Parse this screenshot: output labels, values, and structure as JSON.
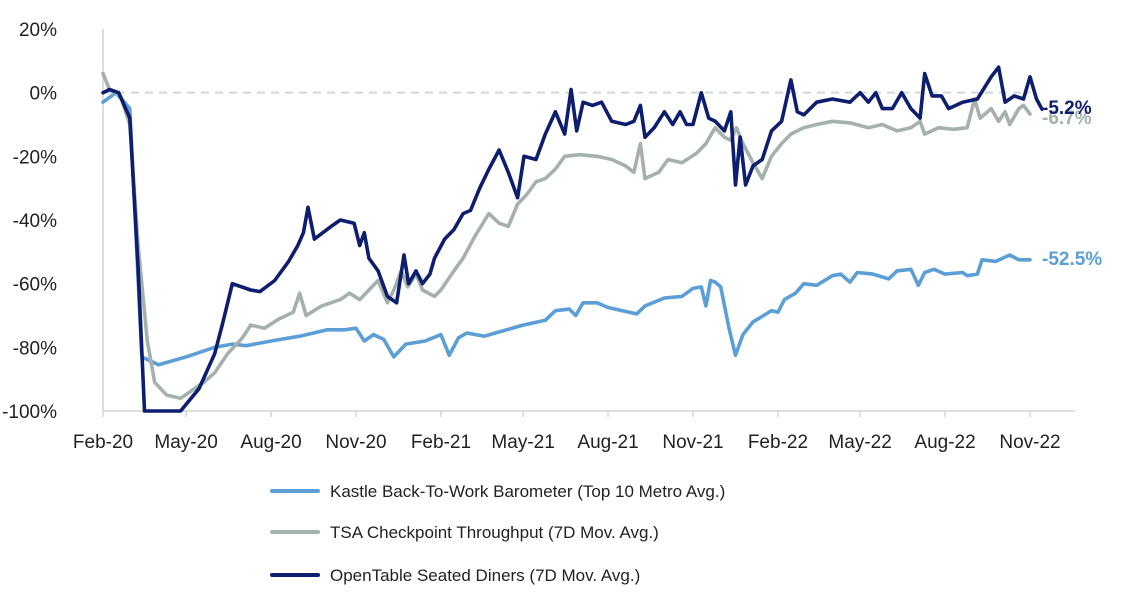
{
  "chart_data": {
    "type": "line",
    "title": "",
    "xlabel": "",
    "ylabel": "",
    "ylim": [
      -100,
      20
    ],
    "y_ticks": [
      20,
      0,
      -20,
      -40,
      -60,
      -80,
      -100
    ],
    "y_tick_labels": [
      "20%",
      "0%",
      "-20%",
      "-40%",
      "-60%",
      "-80%",
      "-100%"
    ],
    "x_range": [
      "2020-02-01",
      "2022-11-01"
    ],
    "x_ticks": [
      "2020-02-01",
      "2020-05-01",
      "2020-08-01",
      "2020-11-01",
      "2021-02-01",
      "2021-05-01",
      "2021-08-01",
      "2021-11-01",
      "2022-02-01",
      "2022-05-01",
      "2022-08-01",
      "2022-11-01"
    ],
    "x_tick_labels": [
      "Feb-20",
      "May-20",
      "Aug-20",
      "Nov-20",
      "Feb-21",
      "May-21",
      "Aug-21",
      "Nov-21",
      "Feb-22",
      "May-22",
      "Aug-22",
      "Nov-22"
    ],
    "zero_reference_line": true,
    "grid": false,
    "legend_position": "bottom",
    "series": [
      {
        "name": "Kastle Back-To-Work Barometer (Top 10 Metro Avg.)",
        "color": "#5b9fd6",
        "end_label": "-52.5%",
        "points": [
          [
            "2020-02-01",
            -3
          ],
          [
            "2020-02-15",
            0
          ],
          [
            "2020-03-01",
            -5
          ],
          [
            "2020-03-07",
            -40
          ],
          [
            "2020-03-14",
            -83
          ],
          [
            "2020-04-01",
            -85.5
          ],
          [
            "2020-05-01",
            -83
          ],
          [
            "2020-06-01",
            -80
          ],
          [
            "2020-06-20",
            -79
          ],
          [
            "2020-07-05",
            -79.5
          ],
          [
            "2020-08-01",
            -78
          ],
          [
            "2020-09-01",
            -76.5
          ],
          [
            "2020-10-01",
            -74.5
          ],
          [
            "2020-10-20",
            -74.5
          ],
          [
            "2020-11-01",
            -74
          ],
          [
            "2020-11-10",
            -78
          ],
          [
            "2020-11-20",
            -76
          ],
          [
            "2020-12-01",
            -77.5
          ],
          [
            "2020-12-12",
            -83
          ],
          [
            "2020-12-25",
            -79
          ],
          [
            "2021-01-15",
            -78
          ],
          [
            "2021-02-01",
            -76
          ],
          [
            "2021-02-10",
            -82.5
          ],
          [
            "2021-02-20",
            -77
          ],
          [
            "2021-03-01",
            -75.5
          ],
          [
            "2021-03-20",
            -76.5
          ],
          [
            "2021-04-01",
            -75.5
          ],
          [
            "2021-05-01",
            -73
          ],
          [
            "2021-05-25",
            -71.5
          ],
          [
            "2021-06-05",
            -68.5
          ],
          [
            "2021-06-20",
            -68
          ],
          [
            "2021-06-27",
            -70
          ],
          [
            "2021-07-05",
            -66
          ],
          [
            "2021-07-20",
            -66
          ],
          [
            "2021-08-01",
            -67.5
          ],
          [
            "2021-09-01",
            -69.5
          ],
          [
            "2021-09-10",
            -67
          ],
          [
            "2021-10-01",
            -64.5
          ],
          [
            "2021-10-20",
            -64
          ],
          [
            "2021-11-01",
            -61.5
          ],
          [
            "2021-11-10",
            -61
          ],
          [
            "2021-11-15",
            -67
          ],
          [
            "2021-11-20",
            -59
          ],
          [
            "2021-11-25",
            -59.5
          ],
          [
            "2021-12-01",
            -61
          ],
          [
            "2021-12-10",
            -74
          ],
          [
            "2021-12-17",
            -82.5
          ],
          [
            "2021-12-25",
            -76
          ],
          [
            "2022-01-05",
            -72
          ],
          [
            "2022-01-25",
            -68.5
          ],
          [
            "2022-02-01",
            -69
          ],
          [
            "2022-02-08",
            -65
          ],
          [
            "2022-02-20",
            -63
          ],
          [
            "2022-03-01",
            -60
          ],
          [
            "2022-03-15",
            -60.5
          ],
          [
            "2022-04-01",
            -57.5
          ],
          [
            "2022-04-10",
            -57
          ],
          [
            "2022-04-20",
            -59.5
          ],
          [
            "2022-04-28",
            -56.5
          ],
          [
            "2022-05-15",
            -57
          ],
          [
            "2022-06-01",
            -58.5
          ],
          [
            "2022-06-10",
            -56
          ],
          [
            "2022-06-25",
            -55.5
          ],
          [
            "2022-07-03",
            -60.5
          ],
          [
            "2022-07-10",
            -56.5
          ],
          [
            "2022-07-20",
            -55.5
          ],
          [
            "2022-08-01",
            -57
          ],
          [
            "2022-08-20",
            -56.5
          ],
          [
            "2022-08-25",
            -57.5
          ],
          [
            "2022-09-05",
            -57
          ],
          [
            "2022-09-10",
            -52.5
          ],
          [
            "2022-09-25",
            -53
          ],
          [
            "2022-10-10",
            -51
          ],
          [
            "2022-10-20",
            -52.5
          ],
          [
            "2022-11-01",
            -52.5
          ]
        ]
      },
      {
        "name": "TSA Checkpoint Throughput (7D Mov. Avg.)",
        "color": "#a4b1ad",
        "end_label": "-6.7%",
        "points": [
          [
            "2020-02-01",
            6
          ],
          [
            "2020-02-08",
            1
          ],
          [
            "2020-02-20",
            -1
          ],
          [
            "2020-03-01",
            -10
          ],
          [
            "2020-03-10",
            -48
          ],
          [
            "2020-03-20",
            -78
          ],
          [
            "2020-03-28",
            -91
          ],
          [
            "2020-04-10",
            -95
          ],
          [
            "2020-04-25",
            -96
          ],
          [
            "2020-05-05",
            -94
          ],
          [
            "2020-05-20",
            -91
          ],
          [
            "2020-06-01",
            -88
          ],
          [
            "2020-06-15",
            -82
          ],
          [
            "2020-07-01",
            -77
          ],
          [
            "2020-07-10",
            -73
          ],
          [
            "2020-07-25",
            -74
          ],
          [
            "2020-08-10",
            -71
          ],
          [
            "2020-08-25",
            -69
          ],
          [
            "2020-09-01",
            -63
          ],
          [
            "2020-09-08",
            -70
          ],
          [
            "2020-09-25",
            -67
          ],
          [
            "2020-10-15",
            -65
          ],
          [
            "2020-10-25",
            -63
          ],
          [
            "2020-11-05",
            -65
          ],
          [
            "2020-11-15",
            -62
          ],
          [
            "2020-11-25",
            -59
          ],
          [
            "2020-12-05",
            -66
          ],
          [
            "2020-12-12",
            -62
          ],
          [
            "2020-12-20",
            -56
          ],
          [
            "2020-12-27",
            -61
          ],
          [
            "2021-01-05",
            -57
          ],
          [
            "2021-01-12",
            -62
          ],
          [
            "2021-01-25",
            -64
          ],
          [
            "2021-02-01",
            -62
          ],
          [
            "2021-02-15",
            -56
          ],
          [
            "2021-02-25",
            -52
          ],
          [
            "2021-03-10",
            -45
          ],
          [
            "2021-03-25",
            -38
          ],
          [
            "2021-04-05",
            -41
          ],
          [
            "2021-04-15",
            -42
          ],
          [
            "2021-04-25",
            -35
          ],
          [
            "2021-05-05",
            -32
          ],
          [
            "2021-05-15",
            -28
          ],
          [
            "2021-05-25",
            -27
          ],
          [
            "2021-06-05",
            -24
          ],
          [
            "2021-06-15",
            -20
          ],
          [
            "2021-07-01",
            -19.5
          ],
          [
            "2021-07-20",
            -20
          ],
          [
            "2021-08-05",
            -21
          ],
          [
            "2021-08-20",
            -23
          ],
          [
            "2021-08-29",
            -25
          ],
          [
            "2021-09-05",
            -16
          ],
          [
            "2021-09-10",
            -27
          ],
          [
            "2021-09-25",
            -25
          ],
          [
            "2021-10-05",
            -21
          ],
          [
            "2021-10-20",
            -22
          ],
          [
            "2021-11-05",
            -19
          ],
          [
            "2021-11-15",
            -16
          ],
          [
            "2021-11-25",
            -11
          ],
          [
            "2021-12-05",
            -14
          ],
          [
            "2021-12-12",
            -15
          ],
          [
            "2021-12-18",
            -11
          ],
          [
            "2021-12-25",
            -16
          ],
          [
            "2022-01-05",
            -22
          ],
          [
            "2022-01-15",
            -27
          ],
          [
            "2022-01-25",
            -20
          ],
          [
            "2022-02-05",
            -16
          ],
          [
            "2022-02-15",
            -13
          ],
          [
            "2022-03-01",
            -11
          ],
          [
            "2022-03-15",
            -10
          ],
          [
            "2022-04-01",
            -9
          ],
          [
            "2022-04-20",
            -9.5
          ],
          [
            "2022-05-10",
            -11
          ],
          [
            "2022-05-25",
            -10
          ],
          [
            "2022-06-10",
            -12
          ],
          [
            "2022-06-25",
            -11
          ],
          [
            "2022-07-05",
            -9
          ],
          [
            "2022-07-10",
            -13
          ],
          [
            "2022-07-25",
            -11
          ],
          [
            "2022-08-10",
            -11.5
          ],
          [
            "2022-08-25",
            -11
          ],
          [
            "2022-09-02",
            -2
          ],
          [
            "2022-09-08",
            -8
          ],
          [
            "2022-09-20",
            -5
          ],
          [
            "2022-09-28",
            -9
          ],
          [
            "2022-10-05",
            -6
          ],
          [
            "2022-10-10",
            -10
          ],
          [
            "2022-10-20",
            -5
          ],
          [
            "2022-10-25",
            -4
          ],
          [
            "2022-11-01",
            -6.7
          ]
        ]
      },
      {
        "name": "OpenTable Seated Diners (7D Mov. Avg.)",
        "color": "#0d1e6e",
        "end_label": "-5.2%",
        "points": [
          [
            "2020-02-01",
            0
          ],
          [
            "2020-02-08",
            1
          ],
          [
            "2020-02-18",
            0
          ],
          [
            "2020-03-01",
            -8
          ],
          [
            "2020-03-10",
            -55
          ],
          [
            "2020-03-17",
            -100
          ],
          [
            "2020-04-10",
            -100
          ],
          [
            "2020-04-25",
            -100
          ],
          [
            "2020-05-15",
            -93
          ],
          [
            "2020-06-01",
            -82
          ],
          [
            "2020-06-10",
            -72
          ],
          [
            "2020-06-20",
            -60
          ],
          [
            "2020-07-10",
            -62
          ],
          [
            "2020-07-20",
            -62.5
          ],
          [
            "2020-08-05",
            -59
          ],
          [
            "2020-08-20",
            -53
          ],
          [
            "2020-08-30",
            -48
          ],
          [
            "2020-09-05",
            -44
          ],
          [
            "2020-09-10",
            -36
          ],
          [
            "2020-09-17",
            -46
          ],
          [
            "2020-10-05",
            -42
          ],
          [
            "2020-10-15",
            -40
          ],
          [
            "2020-10-30",
            -41
          ],
          [
            "2020-11-05",
            -48
          ],
          [
            "2020-11-10",
            -44
          ],
          [
            "2020-11-15",
            -52
          ],
          [
            "2020-11-25",
            -56
          ],
          [
            "2020-12-05",
            -64
          ],
          [
            "2020-12-15",
            -66
          ],
          [
            "2020-12-23",
            -51
          ],
          [
            "2020-12-28",
            -60
          ],
          [
            "2021-01-05",
            -56
          ],
          [
            "2021-01-12",
            -60
          ],
          [
            "2021-01-20",
            -57
          ],
          [
            "2021-01-25",
            -52
          ],
          [
            "2021-02-05",
            -46
          ],
          [
            "2021-02-15",
            -43
          ],
          [
            "2021-02-25",
            -38
          ],
          [
            "2021-03-05",
            -37
          ],
          [
            "2021-03-15",
            -30
          ],
          [
            "2021-03-25",
            -24
          ],
          [
            "2021-04-05",
            -18
          ],
          [
            "2021-04-15",
            -25
          ],
          [
            "2021-04-25",
            -33
          ],
          [
            "2021-05-02",
            -20
          ],
          [
            "2021-05-15",
            -21
          ],
          [
            "2021-05-25",
            -13
          ],
          [
            "2021-06-05",
            -6
          ],
          [
            "2021-06-15",
            -13
          ],
          [
            "2021-06-22",
            1
          ],
          [
            "2021-06-28",
            -12
          ],
          [
            "2021-07-05",
            -3
          ],
          [
            "2021-07-15",
            -4
          ],
          [
            "2021-07-25",
            -3
          ],
          [
            "2021-08-05",
            -9
          ],
          [
            "2021-08-20",
            -10
          ],
          [
            "2021-08-29",
            -9
          ],
          [
            "2021-09-05",
            -4
          ],
          [
            "2021-09-10",
            -14
          ],
          [
            "2021-09-20",
            -11
          ],
          [
            "2021-10-01",
            -6
          ],
          [
            "2021-10-10",
            -10
          ],
          [
            "2021-10-18",
            -6
          ],
          [
            "2021-10-25",
            -10
          ],
          [
            "2021-11-01",
            -10
          ],
          [
            "2021-11-10",
            0
          ],
          [
            "2021-11-18",
            -8
          ],
          [
            "2021-11-25",
            -9
          ],
          [
            "2021-12-05",
            -12
          ],
          [
            "2021-12-12",
            -6
          ],
          [
            "2021-12-17",
            -29
          ],
          [
            "2021-12-22",
            -14
          ],
          [
            "2021-12-28",
            -29
          ],
          [
            "2022-01-05",
            -23
          ],
          [
            "2022-01-15",
            -21
          ],
          [
            "2022-01-25",
            -12
          ],
          [
            "2022-02-05",
            -9
          ],
          [
            "2022-02-15",
            4
          ],
          [
            "2022-02-22",
            -6
          ],
          [
            "2022-03-01",
            -7
          ],
          [
            "2022-03-15",
            -3
          ],
          [
            "2022-04-01",
            -2
          ],
          [
            "2022-04-20",
            -3
          ],
          [
            "2022-05-01",
            0
          ],
          [
            "2022-05-10",
            -3
          ],
          [
            "2022-05-18",
            0
          ],
          [
            "2022-05-25",
            -5
          ],
          [
            "2022-06-05",
            -5
          ],
          [
            "2022-06-15",
            0
          ],
          [
            "2022-06-25",
            -5
          ],
          [
            "2022-07-05",
            -8
          ],
          [
            "2022-07-10",
            6
          ],
          [
            "2022-07-18",
            -1
          ],
          [
            "2022-07-28",
            -1
          ],
          [
            "2022-08-05",
            -5
          ],
          [
            "2022-08-20",
            -3
          ],
          [
            "2022-09-05",
            -2
          ],
          [
            "2022-09-20",
            5
          ],
          [
            "2022-09-28",
            8
          ],
          [
            "2022-10-05",
            -3
          ],
          [
            "2022-10-15",
            -1
          ],
          [
            "2022-10-25",
            -2
          ],
          [
            "2022-11-01",
            5
          ],
          [
            "2022-11-08",
            -2
          ],
          [
            "2022-11-14",
            -5.2
          ]
        ]
      }
    ]
  }
}
